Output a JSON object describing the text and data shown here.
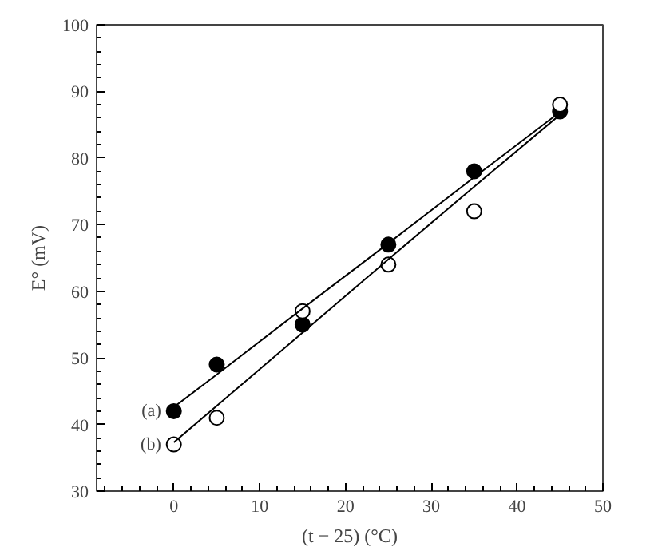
{
  "chart_data": {
    "type": "scatter",
    "xlabel": "(t − 25) (°C)",
    "ylabel": "E° (mV)",
    "x": [
      0,
      5,
      15,
      25,
      35,
      45
    ],
    "series": [
      {
        "name": "(a)",
        "color": "#000000",
        "values": [
          42,
          49,
          55,
          67,
          78,
          87
        ]
      },
      {
        "name": "(b)",
        "color": "#ffffff",
        "values": [
          37,
          41,
          57,
          64,
          72,
          88
        ]
      },
      {
        "type": "line",
        "marker": "none",
        "color": "#000000",
        "x": [
          0,
          5,
          15,
          25,
          35,
          45
        ],
        "values": [
          42.6,
          47.5,
          57.4,
          67.2,
          77.1,
          86.9
        ]
      },
      {
        "type": "line",
        "marker": "none",
        "color": "#000000",
        "x": [
          0,
          5,
          15,
          25,
          35,
          45
        ],
        "values": [
          37.3,
          42.8,
          53.8,
          64.8,
          75.7,
          86.5
        ]
      }
    ],
    "xlim": [
      -9,
      50
    ],
    "ylim": [
      30,
      100
    ],
    "xticks": [
      0,
      10,
      20,
      30,
      40,
      50
    ],
    "yticks": [
      30,
      40,
      50,
      60,
      70,
      80,
      90,
      100
    ],
    "grid": false,
    "legend": false,
    "marker": "circle",
    "line_style": "solid"
  }
}
